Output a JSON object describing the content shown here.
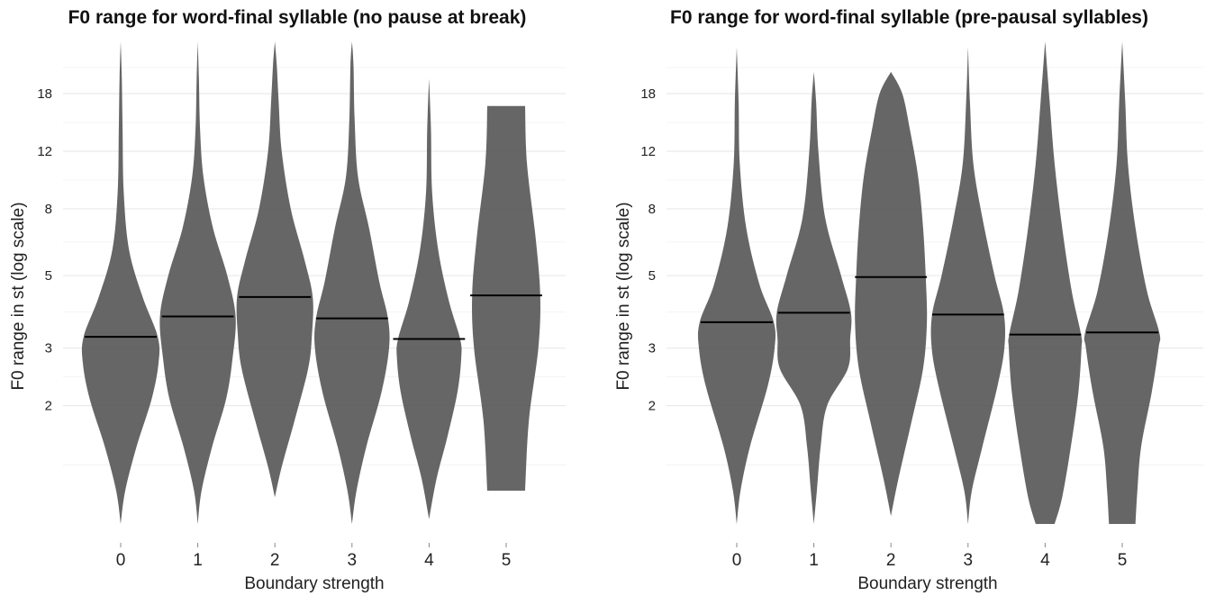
{
  "chart_data": [
    {
      "type": "violin",
      "title": "F0 range for word-final syllable (no pause at break)",
      "xlabel": "Boundary strength",
      "ylabel": "F0 range in st (log scale)",
      "y_scale": "log",
      "y_ticks": [
        2,
        3,
        5,
        8,
        12,
        18
      ],
      "ylim": [
        0.87,
        26
      ],
      "grid": true,
      "categories": [
        "0",
        "1",
        "2",
        "3",
        "4",
        "5"
      ],
      "series": [
        {
          "category": "0",
          "median": 3.25,
          "min": 0.87,
          "max": 26,
          "shape": [
            [
              0.87,
              0
            ],
            [
              1.1,
              0.12
            ],
            [
              1.5,
              0.42
            ],
            [
              2.1,
              0.82
            ],
            [
              2.7,
              1.0
            ],
            [
              3.25,
              0.98
            ],
            [
              4.3,
              0.58
            ],
            [
              6,
              0.22
            ],
            [
              9,
              0.08
            ],
            [
              14,
              0.05
            ],
            [
              20,
              0.03
            ],
            [
              26,
              0
            ]
          ]
        },
        {
          "category": "1",
          "median": 3.75,
          "min": 0.87,
          "max": 26,
          "shape": [
            [
              0.87,
              0
            ],
            [
              1.1,
              0.1
            ],
            [
              1.5,
              0.38
            ],
            [
              2.1,
              0.75
            ],
            [
              2.8,
              0.92
            ],
            [
              3.75,
              1.0
            ],
            [
              5,
              0.78
            ],
            [
              7,
              0.4
            ],
            [
              10,
              0.15
            ],
            [
              14,
              0.06
            ],
            [
              20,
              0.03
            ],
            [
              26,
              0
            ]
          ]
        },
        {
          "category": "2",
          "median": 4.3,
          "min": 1.05,
          "max": 26,
          "shape": [
            [
              1.05,
              0
            ],
            [
              1.3,
              0.18
            ],
            [
              1.8,
              0.52
            ],
            [
              2.6,
              0.88
            ],
            [
              3.3,
              0.98
            ],
            [
              4.3,
              1.0
            ],
            [
              5.6,
              0.78
            ],
            [
              8,
              0.42
            ],
            [
              12,
              0.18
            ],
            [
              17,
              0.1
            ],
            [
              22,
              0.05
            ],
            [
              26,
              0
            ]
          ]
        },
        {
          "category": "3",
          "median": 3.7,
          "min": 0.87,
          "max": 26,
          "shape": [
            [
              0.87,
              0
            ],
            [
              1.1,
              0.12
            ],
            [
              1.5,
              0.38
            ],
            [
              2.2,
              0.78
            ],
            [
              3.0,
              0.98
            ],
            [
              3.7,
              0.95
            ],
            [
              4.8,
              0.72
            ],
            [
              7,
              0.45
            ],
            [
              10,
              0.16
            ],
            [
              15,
              0.07
            ],
            [
              22,
              0.04
            ],
            [
              26,
              0
            ]
          ]
        },
        {
          "category": "4",
          "median": 3.2,
          "min": 0.9,
          "max": 20,
          "shape": [
            [
              0.9,
              0
            ],
            [
              1.2,
              0.2
            ],
            [
              1.6,
              0.48
            ],
            [
              2.2,
              0.75
            ],
            [
              2.8,
              0.85
            ],
            [
              3.2,
              0.82
            ],
            [
              4.2,
              0.52
            ],
            [
              6,
              0.24
            ],
            [
              9,
              0.08
            ],
            [
              14,
              0.05
            ],
            [
              20,
              0
            ]
          ]
        },
        {
          "category": "5",
          "median": 4.35,
          "min": 1.1,
          "max": 16.5,
          "shape": [
            [
              1.1,
              0.5
            ],
            [
              1.8,
              0.6
            ],
            [
              3,
              0.85
            ],
            [
              4.35,
              0.9
            ],
            [
              6.5,
              0.78
            ],
            [
              11,
              0.55
            ],
            [
              16.5,
              0.5
            ]
          ]
        }
      ]
    },
    {
      "type": "violin",
      "title": "F0 range for word-final syllable (pre-pausal syllables)",
      "xlabel": "Boundary strength",
      "ylabel": "F0 range in st (log scale)",
      "y_scale": "log",
      "y_ticks": [
        2,
        3,
        5,
        8,
        12,
        18
      ],
      "ylim": [
        0.87,
        26
      ],
      "grid": true,
      "categories": [
        "0",
        "1",
        "2",
        "3",
        "4",
        "5"
      ],
      "series": [
        {
          "category": "0",
          "median": 3.6,
          "min": 0.87,
          "max": 25,
          "shape": [
            [
              0.87,
              0
            ],
            [
              1.1,
              0.1
            ],
            [
              1.5,
              0.35
            ],
            [
              2.3,
              0.82
            ],
            [
              3.0,
              1.0
            ],
            [
              3.6,
              0.98
            ],
            [
              4.7,
              0.6
            ],
            [
              7,
              0.25
            ],
            [
              11,
              0.08
            ],
            [
              17,
              0.05
            ],
            [
              25,
              0
            ]
          ]
        },
        {
          "category": "1",
          "median": 3.85,
          "min": 0.87,
          "max": 21,
          "shape": [
            [
              0.87,
              0
            ],
            [
              1.1,
              0.08
            ],
            [
              1.5,
              0.18
            ],
            [
              2.0,
              0.35
            ],
            [
              2.6,
              0.9
            ],
            [
              3.2,
              0.96
            ],
            [
              3.85,
              0.98
            ],
            [
              5,
              0.72
            ],
            [
              7.5,
              0.3
            ],
            [
              12,
              0.12
            ],
            [
              17,
              0.06
            ],
            [
              21,
              0
            ]
          ]
        },
        {
          "category": "2",
          "median": 4.95,
          "min": 0.92,
          "max": 21,
          "shape": [
            [
              0.92,
              0
            ],
            [
              1.2,
              0.2
            ],
            [
              1.8,
              0.55
            ],
            [
              2.6,
              0.85
            ],
            [
              3.6,
              0.95
            ],
            [
              4.95,
              0.92
            ],
            [
              7,
              0.85
            ],
            [
              10,
              0.72
            ],
            [
              14,
              0.5
            ],
            [
              18,
              0.3
            ],
            [
              21,
              0
            ]
          ]
        },
        {
          "category": "3",
          "median": 3.8,
          "min": 0.87,
          "max": 25,
          "shape": [
            [
              0.87,
              0
            ],
            [
              1.1,
              0.1
            ],
            [
              1.5,
              0.38
            ],
            [
              2.3,
              0.78
            ],
            [
              3.0,
              0.96
            ],
            [
              3.8,
              0.95
            ],
            [
              5,
              0.7
            ],
            [
              7.5,
              0.38
            ],
            [
              11,
              0.14
            ],
            [
              17,
              0.05
            ],
            [
              25,
              0
            ]
          ]
        },
        {
          "category": "4",
          "median": 3.3,
          "min": 0.87,
          "max": 26,
          "shape": [
            [
              0.87,
              0.25
            ],
            [
              1.05,
              0.45
            ],
            [
              1.5,
              0.68
            ],
            [
              2.2,
              0.88
            ],
            [
              3.0,
              0.96
            ],
            [
              3.3,
              0.95
            ],
            [
              4.5,
              0.7
            ],
            [
              7,
              0.45
            ],
            [
              11,
              0.25
            ],
            [
              17,
              0.12
            ],
            [
              26,
              0
            ]
          ]
        },
        {
          "category": "5",
          "median": 3.35,
          "min": 0.87,
          "max": 26,
          "shape": [
            [
              0.87,
              0.35
            ],
            [
              1.1,
              0.4
            ],
            [
              1.5,
              0.5
            ],
            [
              2.2,
              0.78
            ],
            [
              3.0,
              0.96
            ],
            [
              3.35,
              0.98
            ],
            [
              4.5,
              0.65
            ],
            [
              7,
              0.35
            ],
            [
              11,
              0.15
            ],
            [
              17,
              0.08
            ],
            [
              26,
              0
            ]
          ]
        }
      ]
    }
  ]
}
